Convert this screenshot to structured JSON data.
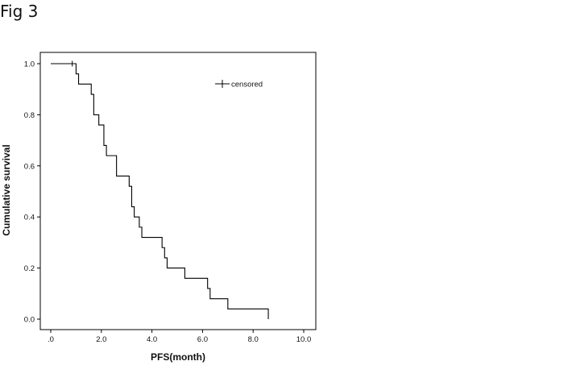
{
  "figure_label": "Fig 3",
  "chart_data": {
    "type": "line",
    "title": "",
    "xlabel": "PFS(month)",
    "ylabel": "Cumulative survival",
    "xlim": [
      0,
      10
    ],
    "ylim": [
      0,
      1
    ],
    "x_ticks": [
      0,
      2,
      4,
      6,
      8,
      10
    ],
    "x_tick_labels": [
      ".0",
      "2.0",
      "4.0",
      "6.0",
      "8.0",
      "10.0"
    ],
    "y_ticks": [
      0,
      0.2,
      0.4,
      0.6,
      0.8,
      1.0
    ],
    "y_tick_labels": [
      "0.0",
      "0.2",
      "0.4",
      "0.6",
      "0.8",
      "1.0"
    ],
    "grid": false,
    "legend_position": "top-right",
    "legend": [
      {
        "label": "censored",
        "marker": "plus"
      }
    ],
    "series": [
      {
        "style": "step",
        "x": [
          0,
          1.0,
          1.1,
          1.6,
          1.7,
          1.9,
          2.1,
          2.2,
          2.6,
          3.1,
          3.2,
          3.3,
          3.5,
          3.6,
          4.4,
          4.5,
          4.6,
          5.3,
          6.2,
          6.3,
          7.0,
          8.6
        ],
        "y": [
          1.0,
          0.96,
          0.92,
          0.88,
          0.8,
          0.76,
          0.68,
          0.64,
          0.56,
          0.52,
          0.44,
          0.4,
          0.36,
          0.32,
          0.28,
          0.24,
          0.2,
          0.16,
          0.12,
          0.08,
          0.04,
          0.0
        ],
        "censored_x": [
          0.85
        ],
        "censored_y": [
          1.0
        ]
      }
    ]
  }
}
